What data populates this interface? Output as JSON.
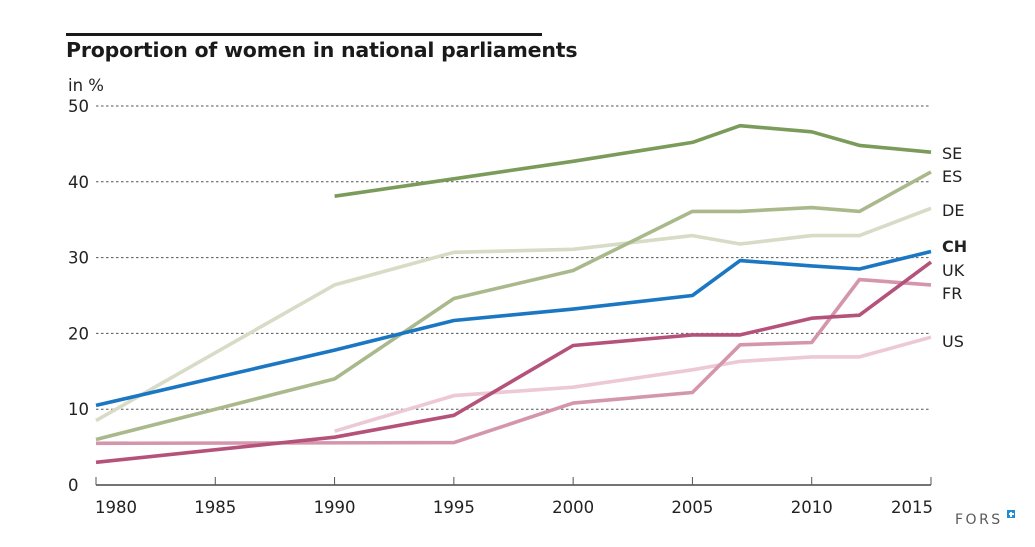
{
  "chart_data": {
    "type": "line",
    "title": "Proportion of women in national parliaments",
    "ylabel": "in %",
    "xlabel": "",
    "xlim": [
      1980,
      2015
    ],
    "ylim": [
      0,
      50
    ],
    "x_ticks": [
      1980,
      1985,
      1990,
      1995,
      2000,
      2005,
      2010,
      2015
    ],
    "y_ticks": [
      0,
      10,
      20,
      30,
      40,
      50
    ],
    "grid": "horizontal dotted",
    "legend": "direct labels at right end of lines",
    "series": [
      {
        "name": "SE",
        "bold": false,
        "color": "#7b9b5b",
        "x": [
          1990,
          1995,
          2000,
          2005,
          2007,
          2010,
          2012,
          2015
        ],
        "values": [
          38.1,
          40.4,
          42.7,
          45.2,
          47.4,
          46.6,
          44.8,
          43.9
        ]
      },
      {
        "name": "ES",
        "bold": false,
        "color": "#aab98c",
        "x": [
          1980,
          1985,
          1990,
          1995,
          2000,
          2005,
          2007,
          2010,
          2012,
          2015
        ],
        "values": [
          6.0,
          10.0,
          14.0,
          24.6,
          28.3,
          36.1,
          36.1,
          36.6,
          36.1,
          41.3
        ]
      },
      {
        "name": "DE",
        "bold": false,
        "color": "#d6dcc6",
        "x": [
          1980,
          1990,
          1995,
          2000,
          2005,
          2007,
          2010,
          2012,
          2015
        ],
        "values": [
          8.5,
          26.4,
          30.7,
          31.1,
          32.9,
          31.8,
          32.9,
          32.9,
          36.5
        ]
      },
      {
        "name": "CH",
        "bold": true,
        "color": "#1c77c3",
        "x": [
          1980,
          1990,
          1995,
          2000,
          2005,
          2007,
          2010,
          2012,
          2015
        ],
        "values": [
          10.5,
          17.8,
          21.7,
          23.2,
          25.0,
          29.6,
          28.9,
          28.5,
          30.8
        ]
      },
      {
        "name": "UK",
        "bold": false,
        "color": "#b5527a",
        "x": [
          1980,
          1990,
          1995,
          2000,
          2005,
          2007,
          2010,
          2012,
          2015
        ],
        "values": [
          3.0,
          6.3,
          9.2,
          18.4,
          19.8,
          19.8,
          22.0,
          22.4,
          29.4
        ]
      },
      {
        "name": "FR",
        "bold": false,
        "color": "#d496ac",
        "x": [
          1980,
          1995,
          2000,
          2005,
          2007,
          2010,
          2012,
          2015
        ],
        "values": [
          5.5,
          5.6,
          10.8,
          12.2,
          18.5,
          18.8,
          27.1,
          26.4
        ]
      },
      {
        "name": "US",
        "bold": false,
        "color": "#ecc9d5",
        "x": [
          1990,
          1995,
          2000,
          2005,
          2007,
          2010,
          2012,
          2015
        ],
        "values": [
          7.1,
          11.8,
          12.9,
          15.2,
          16.3,
          16.9,
          16.9,
          19.5
        ]
      }
    ]
  },
  "branding": {
    "logo_text": "FORS"
  }
}
